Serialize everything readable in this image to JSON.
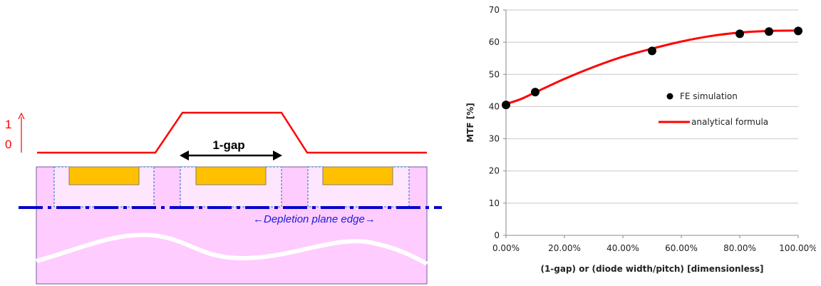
{
  "diagram": {
    "profile_level_high": "1",
    "profile_level_low": "0",
    "gap_label": "1-gap",
    "depletion_label": "←Depletion plane edge→",
    "colors": {
      "profile": "#ff0000",
      "substrate": "#ffccff",
      "diode": "#ffc000",
      "depletion_line": "#0000cc",
      "dashed_box": "#1f6fbf"
    }
  },
  "chart_data": {
    "type": "scatter",
    "xlabel": "(1-gap) or (diode width/pitch) [dimensionless]",
    "ylabel": "MTF [%]",
    "xlim": [
      0,
      100
    ],
    "ylim": [
      0,
      70
    ],
    "xticks": [
      "0.00%",
      "20.00%",
      "40.00%",
      "60.00%",
      "80.00%",
      "100.00%"
    ],
    "yticks": [
      "0",
      "10",
      "20",
      "30",
      "40",
      "50",
      "60",
      "70"
    ],
    "grid": "horizontal",
    "legend_position": "right",
    "series": [
      {
        "name": "FE simulation",
        "mark": "point",
        "color": "#000000",
        "x": [
          0,
          10,
          50,
          80,
          90,
          100
        ],
        "y": [
          40.5,
          44.5,
          57.3,
          62.6,
          63.3,
          63.5
        ]
      },
      {
        "name": "analytical formula",
        "mark": "line",
        "color": "#ff0000",
        "x": [
          0,
          5,
          10,
          20,
          30,
          40,
          50,
          60,
          70,
          80,
          90,
          100
        ],
        "y": [
          40.8,
          42.3,
          44.4,
          48.6,
          52.3,
          55.5,
          58.0,
          60.2,
          61.9,
          63.0,
          63.5,
          63.6
        ]
      }
    ]
  }
}
